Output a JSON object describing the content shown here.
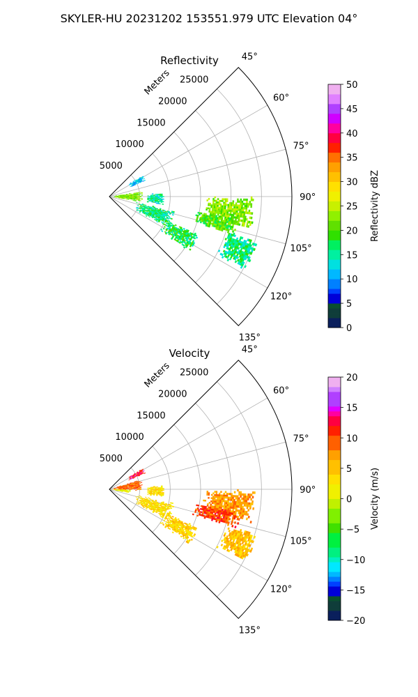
{
  "figure": {
    "suptitle": "SKYLER-HU  20231202  153551.979 UTC Elevation 04°"
  },
  "chart_data": [
    {
      "type": "heatmap",
      "title": "Reflectivity",
      "projection": "polar-sector",
      "azimuth_range_deg": [
        45,
        135
      ],
      "radius_range_m": [
        0,
        30000
      ],
      "radial_ticks": [
        5000,
        10000,
        15000,
        20000,
        25000
      ],
      "radial_tick_labels": [
        "5000",
        "10000",
        "15000",
        "20000",
        "25000"
      ],
      "radial_axis_label": "Meters",
      "angle_ticks": [
        45,
        60,
        75,
        90,
        105,
        120,
        135
      ],
      "angle_tick_labels": [
        "45°",
        "60°",
        "75°",
        "90°",
        "105°",
        "120°",
        "135°"
      ],
      "grid": true,
      "colorbar": {
        "label": "Reflectivity dBZ",
        "range": [
          0,
          50
        ],
        "ticks": [
          0,
          5,
          10,
          15,
          20,
          25,
          30,
          35,
          40,
          45,
          50
        ],
        "tick_labels": [
          "0",
          "5",
          "10",
          "15",
          "20",
          "25",
          "30",
          "35",
          "40",
          "45",
          "50"
        ]
      },
      "echo_regions": [
        {
          "az": [
            80,
            100
          ],
          "r": [
            500,
            5500
          ],
          "value": 22
        },
        {
          "az": [
            57,
            66
          ],
          "r": [
            3500,
            6500
          ],
          "value": 12
        },
        {
          "az": [
            86,
            98
          ],
          "r": [
            6000,
            9000
          ],
          "value": 15
        },
        {
          "az": [
            102,
            118
          ],
          "r": [
            4500,
            11000
          ],
          "value": 16
        },
        {
          "az": [
            112,
            124
          ],
          "r": [
            10000,
            16000
          ],
          "value": 17
        },
        {
          "az": [
            90,
            103
          ],
          "r": [
            15500,
            24000
          ],
          "value": 22
        },
        {
          "az": [
            99,
            107
          ],
          "r": [
            14000,
            22000
          ],
          "value": 20
        },
        {
          "az": [
            106,
            118
          ],
          "r": [
            20000,
            25500
          ],
          "value": 16
        }
      ]
    },
    {
      "type": "heatmap",
      "title": "Velocity",
      "projection": "polar-sector",
      "azimuth_range_deg": [
        45,
        135
      ],
      "radius_range_m": [
        0,
        30000
      ],
      "radial_ticks": [
        5000,
        10000,
        15000,
        20000,
        25000
      ],
      "radial_tick_labels": [
        "5000",
        "10000",
        "15000",
        "20000",
        "25000"
      ],
      "radial_axis_label": "Meters",
      "angle_ticks": [
        45,
        60,
        75,
        90,
        105,
        120,
        135
      ],
      "angle_tick_labels": [
        "45°",
        "60°",
        "75°",
        "90°",
        "105°",
        "120°",
        "135°"
      ],
      "grid": true,
      "colorbar": {
        "label": "Velocity (m/s)",
        "range": [
          -20,
          20
        ],
        "ticks": [
          -20,
          -15,
          -10,
          -5,
          0,
          5,
          10,
          15,
          20
        ],
        "tick_labels": [
          "−20",
          "−15",
          "−10",
          "−5",
          "0",
          "5",
          "10",
          "15",
          "20"
        ]
      },
      "echo_regions": [
        {
          "az": [
            72,
            92
          ],
          "r": [
            500,
            5500
          ],
          "value": 9
        },
        {
          "az": [
            90,
            100
          ],
          "r": [
            500,
            3500
          ],
          "value": 1
        },
        {
          "az": [
            57,
            66
          ],
          "r": [
            3500,
            6500
          ],
          "value": 12
        },
        {
          "az": [
            86,
            98
          ],
          "r": [
            6000,
            9000
          ],
          "value": 3
        },
        {
          "az": [
            102,
            118
          ],
          "r": [
            4500,
            11000
          ],
          "value": 3
        },
        {
          "az": [
            112,
            124
          ],
          "r": [
            10000,
            16000
          ],
          "value": 4
        },
        {
          "az": [
            90,
            103
          ],
          "r": [
            15500,
            24000
          ],
          "value": 7
        },
        {
          "az": [
            99,
            107
          ],
          "r": [
            14000,
            22000
          ],
          "value": 10
        },
        {
          "az": [
            106,
            118
          ],
          "r": [
            20000,
            25500
          ],
          "value": 5
        }
      ]
    }
  ]
}
